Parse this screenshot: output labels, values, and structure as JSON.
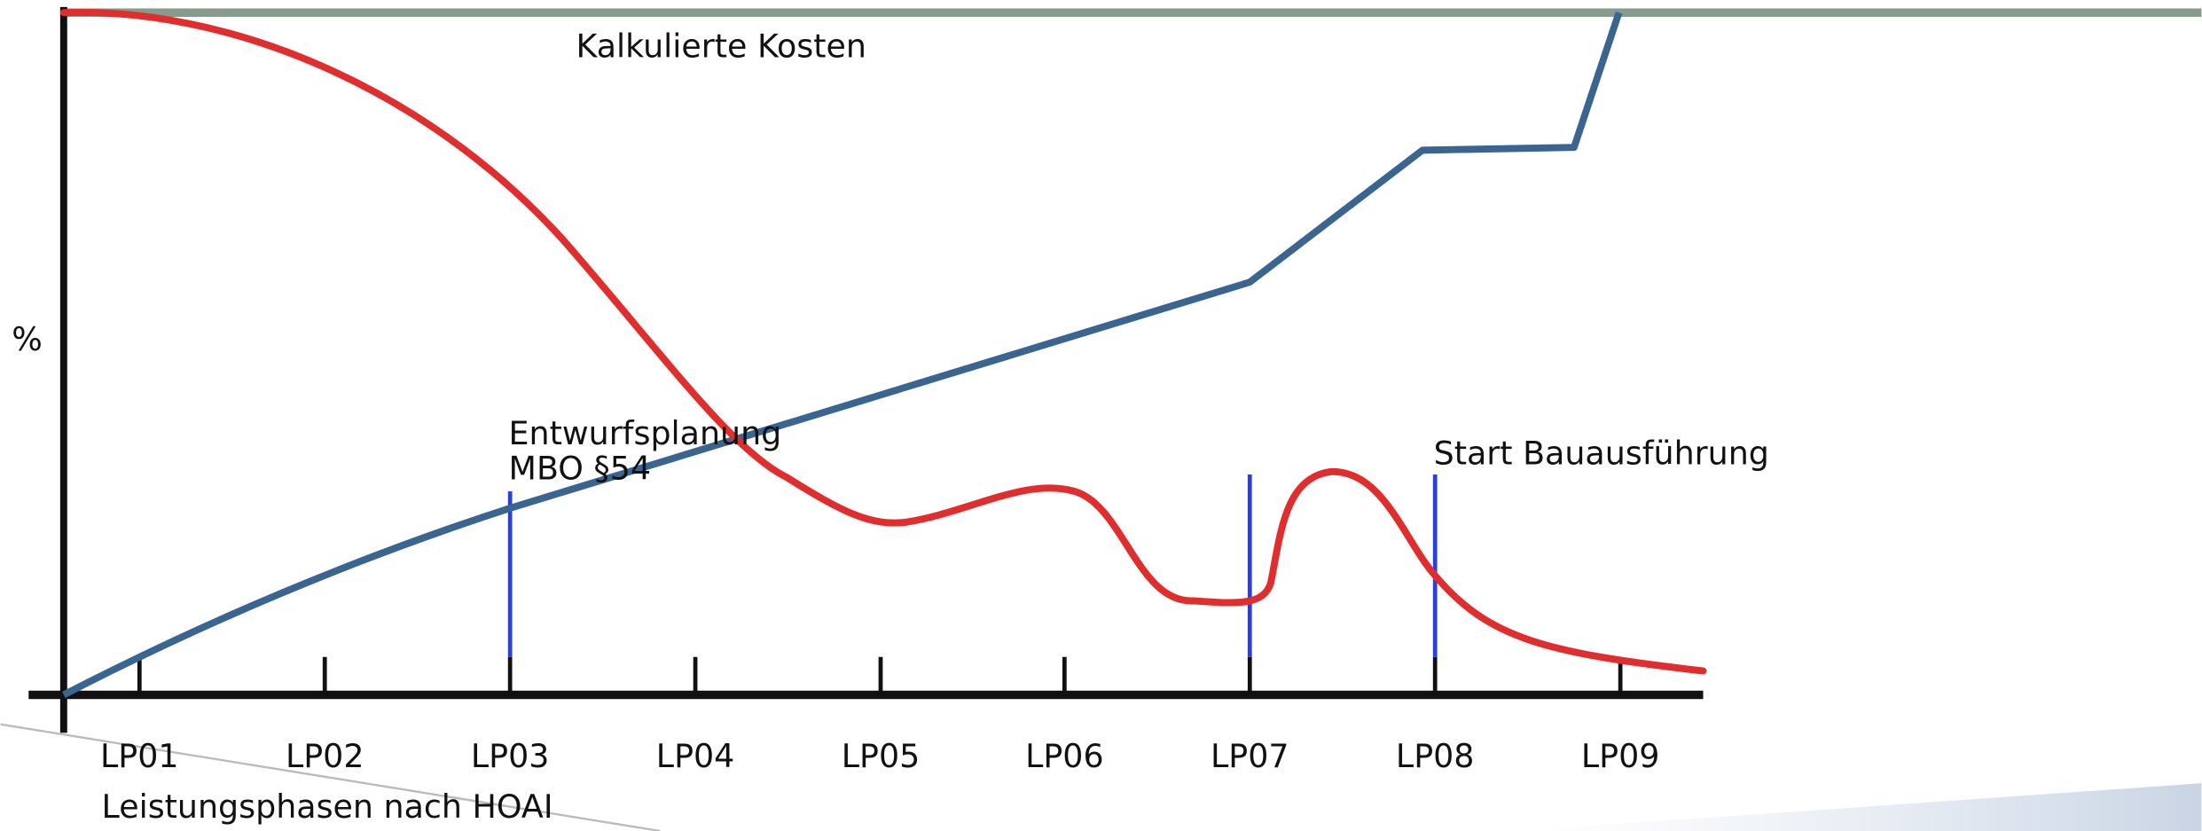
{
  "title": "Kalkulierte Kosten",
  "y_axis_label": "%",
  "x_axis_label": "Leistungsphasen nach HOAI",
  "x_labels": [
    "LP01",
    "LP02",
    "LP03",
    "LP04",
    "LP05",
    "LP06",
    "LP07",
    "LP08",
    "LP09"
  ],
  "annotations": [
    "Entwurfsplanung",
    "MBO §54",
    "Start Bauausführung"
  ]
}
